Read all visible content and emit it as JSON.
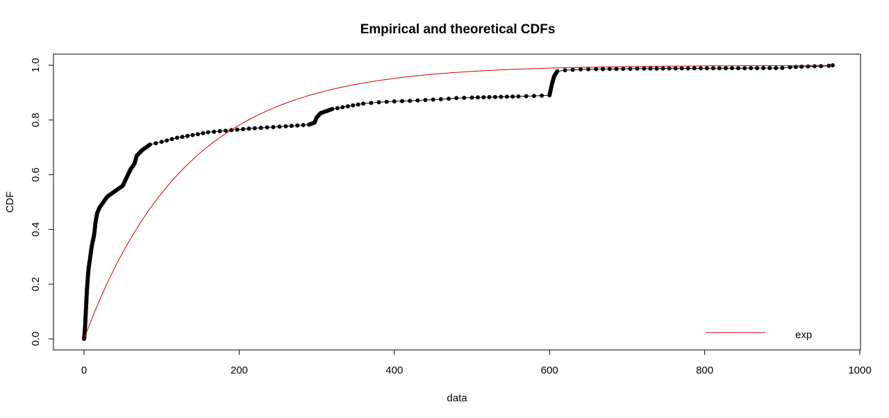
{
  "chart_data": {
    "type": "line",
    "title": "Empirical and theoretical CDFs",
    "xlabel": "data",
    "ylabel": "CDF",
    "xlim": [
      0,
      1000
    ],
    "ylim": [
      0,
      1
    ],
    "x_ticks": [
      "0",
      "200",
      "400",
      "600",
      "800",
      "1000"
    ],
    "y_ticks": [
      "0.0",
      "0.2",
      "0.4",
      "0.6",
      "0.8",
      "1.0"
    ],
    "grid": false,
    "legend_position": "bottom-right",
    "series": [
      {
        "name": "",
        "kind": "empirical",
        "color": "#000000",
        "points": [
          [
            0,
            0.0
          ],
          [
            1,
            0.03
          ],
          [
            2,
            0.08
          ],
          [
            3,
            0.14
          ],
          [
            4,
            0.19
          ],
          [
            5,
            0.23
          ],
          [
            6,
            0.26
          ],
          [
            8,
            0.3
          ],
          [
            10,
            0.34
          ],
          [
            13,
            0.38
          ],
          [
            15,
            0.43
          ],
          [
            17,
            0.46
          ],
          [
            20,
            0.48
          ],
          [
            25,
            0.5
          ],
          [
            30,
            0.52
          ],
          [
            40,
            0.54
          ],
          [
            50,
            0.56
          ],
          [
            55,
            0.59
          ],
          [
            60,
            0.62
          ],
          [
            65,
            0.64
          ],
          [
            68,
            0.67
          ],
          [
            75,
            0.69
          ],
          [
            85,
            0.71
          ],
          [
            100,
            0.72
          ],
          [
            120,
            0.735
          ],
          [
            140,
            0.745
          ],
          [
            160,
            0.755
          ],
          [
            190,
            0.763
          ],
          [
            220,
            0.77
          ],
          [
            260,
            0.777
          ],
          [
            290,
            0.783
          ],
          [
            297,
            0.79
          ],
          [
            300,
            0.81
          ],
          [
            305,
            0.825
          ],
          [
            320,
            0.84
          ],
          [
            340,
            0.85
          ],
          [
            360,
            0.86
          ],
          [
            380,
            0.865
          ],
          [
            400,
            0.868
          ],
          [
            420,
            0.87
          ],
          [
            440,
            0.873
          ],
          [
            460,
            0.876
          ],
          [
            480,
            0.88
          ],
          [
            500,
            0.882
          ],
          [
            530,
            0.884
          ],
          [
            560,
            0.886
          ],
          [
            580,
            0.888
          ],
          [
            600,
            0.89
          ],
          [
            603,
            0.93
          ],
          [
            606,
            0.96
          ],
          [
            610,
            0.978
          ],
          [
            620,
            0.982
          ],
          [
            640,
            0.985
          ],
          [
            660,
            0.986
          ],
          [
            695,
            0.987
          ],
          [
            722,
            0.988
          ],
          [
            900,
            0.99
          ],
          [
            910,
            0.993
          ],
          [
            925,
            0.995
          ],
          [
            950,
            0.997
          ],
          [
            960,
            0.998
          ],
          [
            965,
            1.0
          ]
        ]
      },
      {
        "name": "exp",
        "kind": "theoretical",
        "color": "#cc0000",
        "rate": 0.0076
      }
    ]
  }
}
